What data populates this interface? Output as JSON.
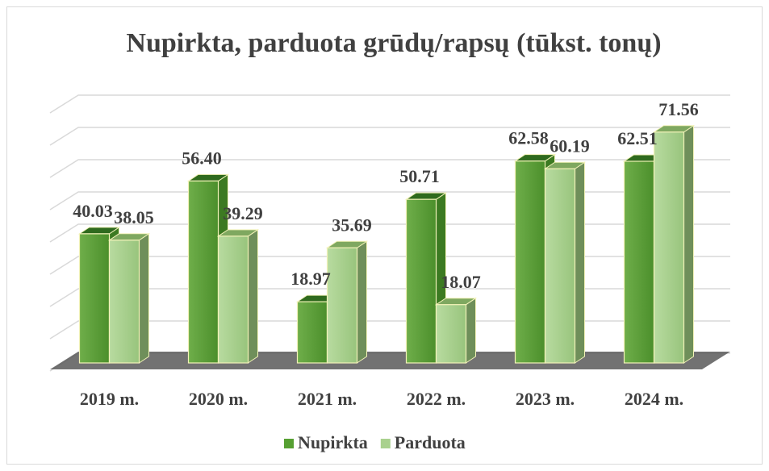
{
  "chart_data": {
    "type": "bar3d",
    "title": "Nupirkta, parduota grūdų/rapsų (tūkst. tonų)",
    "categories": [
      "2019 m.",
      "2020 m.",
      "2021 m.",
      "2022 m.",
      "2023 m.",
      "2024 m."
    ],
    "series": [
      {
        "name": "Nupirkta",
        "color": "#56a032",
        "values": [
          40.03,
          56.4,
          18.97,
          50.71,
          62.58,
          62.51
        ],
        "value_labels": [
          "40.03",
          "56.40",
          "18.97",
          "50.71",
          "62.58",
          "62.51"
        ]
      },
      {
        "name": "Parduota",
        "color": "#a9d18e",
        "values": [
          38.05,
          39.29,
          35.69,
          18.07,
          60.19,
          71.56
        ],
        "value_labels": [
          "38.05",
          "39.29",
          "35.69",
          "18.07",
          "60.19",
          "71.56"
        ]
      }
    ],
    "ylim": [
      0,
      80
    ],
    "legend": "bottom"
  }
}
